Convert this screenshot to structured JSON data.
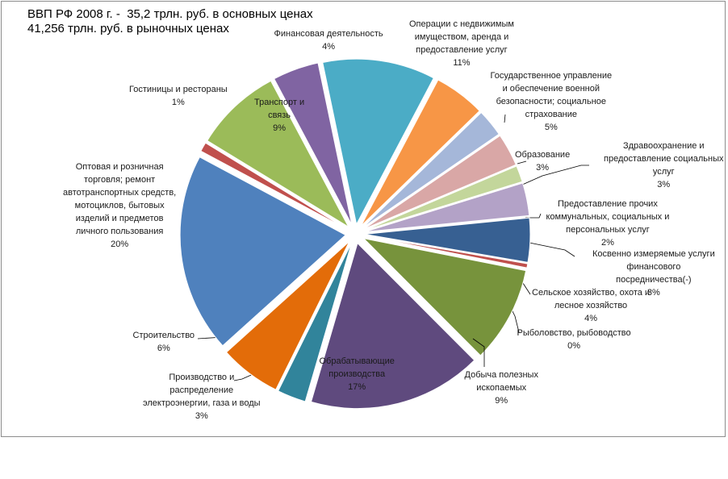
{
  "chart_data": {
    "type": "pie",
    "title_lines": [
      "ВВП РФ 2008 г. -  35,2 трлн. руб. в основных ценах",
      "41,256 трлн. руб. в рыночных ценах"
    ],
    "slices": [
      {
        "lines": [
          "Финансовая деятельность"
        ],
        "pct_label": "4%",
        "value": 4.5,
        "color": "#8064a2"
      },
      {
        "lines": [
          "Операции с недвижимым",
          "имуществом, аренда и",
          "предоставление услуг"
        ],
        "pct_label": "11%",
        "value": 11,
        "color": "#4bacc6"
      },
      {
        "lines": [
          "Государственное управление",
          "и обеспечение военной",
          "безопасности; социальное",
          "страхование"
        ],
        "pct_label": "5%",
        "value": 5,
        "color": "#f79646"
      },
      {
        "lines": [
          "Образование"
        ],
        "pct_label": "3%",
        "value": 2.7,
        "color": "#a5b7d9"
      },
      {
        "lines": [
          "Здравоохранение  и",
          "предоставление социальных",
          "услуг"
        ],
        "pct_label": "3%",
        "value": 3.2,
        "color": "#d9a7a6"
      },
      {
        "lines": [
          "Предоставление прочих",
          "коммунальных, социальных и",
          "персональных услуг"
        ],
        "pct_label": "2%",
        "value": 1.6,
        "color": "#c3d69b"
      },
      {
        "lines": [
          "Косвенно измеряемые услуги",
          "финансового",
          "посредничества(-)"
        ],
        "pct_label": "3%",
        "value": 3.2,
        "color": "#b3a2c7"
      },
      {
        "lines": [
          "Сельское хозяйство, охота и",
          "лесное хозяйство"
        ],
        "pct_label": "4%",
        "value": 4.3,
        "color": "#376092"
      },
      {
        "lines": [
          "Рыболовство, рыбоводство"
        ],
        "pct_label": "0%",
        "value": 0.4,
        "color": "#c0504d"
      },
      {
        "lines": [
          "Добыча полезных",
          "ископаемых"
        ],
        "pct_label": "9%",
        "value": 9.4,
        "color": "#77933c"
      },
      {
        "lines": [
          "Обрабатывающие",
          "производства"
        ],
        "pct_label": "17%",
        "value": 17,
        "color": "#5f4a7e"
      },
      {
        "lines": [
          "Производство и",
          "распределение",
          "электроэнергии, газа и воды"
        ],
        "pct_label": "3%",
        "value": 2.8,
        "color": "#31849b"
      },
      {
        "lines": [
          "Строительство"
        ],
        "pct_label": "6%",
        "value": 6,
        "color": "#e36c09"
      },
      {
        "lines": [
          "Оптовая и розничная",
          "торговля; ремонт",
          "автотранспортных средств,",
          "мотоциклов, бытовых",
          "изделий и предметов",
          "личного пользования"
        ],
        "pct_label": "20%",
        "value": 19.5,
        "color": "#4f81bd"
      },
      {
        "lines": [
          "Гостиницы и рестораны"
        ],
        "pct_label": "1%",
        "value": 0.9,
        "color": "#c0504d"
      },
      {
        "lines": [
          "Транспорт и",
          "связь"
        ],
        "pct_label": "9%",
        "value": 8.5,
        "color": "#9bbb59"
      }
    ],
    "legend": "none",
    "grid": false
  }
}
